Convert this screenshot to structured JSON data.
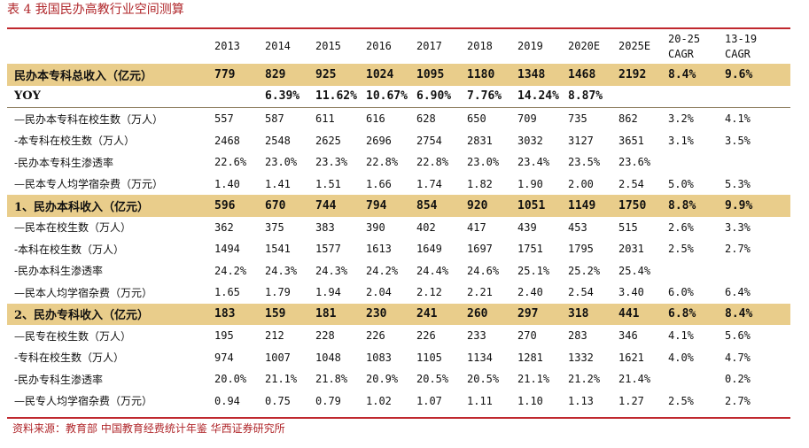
{
  "title": "表 4 我国民办高教行业空间测算",
  "header": {
    "blank": "",
    "years": [
      "2013",
      "2014",
      "2015",
      "2016",
      "2017",
      "2018",
      "2019",
      "2020E",
      "2025E"
    ],
    "cagr1": [
      "20-25",
      "CAGR"
    ],
    "cagr2": [
      "13-19",
      "CAGR"
    ]
  },
  "rows": [
    {
      "label": "民办本专科总收入（亿元）",
      "style": "hl",
      "values": [
        "779",
        "829",
        "925",
        "1024",
        "1095",
        "1180",
        "1348",
        "1468",
        "2192",
        "8.4%",
        "9.6%"
      ]
    },
    {
      "label": "YOY",
      "style": "bold sepline",
      "values": [
        "",
        "6.39%",
        "11.62%",
        "10.67%",
        "6.90%",
        "7.76%",
        "14.24%",
        "8.87%",
        "",
        "",
        ""
      ]
    },
    {
      "label": "—民办本专科在校生数（万人）",
      "style": "",
      "values": [
        "557",
        "587",
        "611",
        "616",
        "628",
        "650",
        "709",
        "735",
        "862",
        "3.2%",
        "4.1%"
      ]
    },
    {
      "label": "-本专科在校生数（万人）",
      "style": "",
      "values": [
        "2468",
        "2548",
        "2625",
        "2696",
        "2754",
        "2831",
        "3032",
        "3127",
        "3651",
        "3.1%",
        "3.5%"
      ]
    },
    {
      "label": "-民办本专科生渗透率",
      "style": "",
      "values": [
        "22.6%",
        "23.0%",
        "23.3%",
        "22.8%",
        "22.8%",
        "23.0%",
        "23.4%",
        "23.5%",
        "23.6%",
        "",
        ""
      ]
    },
    {
      "label": "—民本专人均学宿杂费（万元）",
      "style": "",
      "values": [
        "1.40",
        "1.41",
        "1.51",
        "1.66",
        "1.74",
        "1.82",
        "1.90",
        "2.00",
        "2.54",
        "5.0%",
        "5.3%"
      ]
    },
    {
      "label": "1、民办本科收入（亿元）",
      "style": "hl",
      "values": [
        "596",
        "670",
        "744",
        "794",
        "854",
        "920",
        "1051",
        "1149",
        "1750",
        "8.8%",
        "9.9%"
      ]
    },
    {
      "label": "—民本在校生数（万人）",
      "style": "",
      "values": [
        "362",
        "375",
        "383",
        "390",
        "402",
        "417",
        "439",
        "453",
        "515",
        "2.6%",
        "3.3%"
      ]
    },
    {
      "label": "-本科在校生数（万人）",
      "style": "",
      "values": [
        "1494",
        "1541",
        "1577",
        "1613",
        "1649",
        "1697",
        "1751",
        "1795",
        "2031",
        "2.5%",
        "2.7%"
      ]
    },
    {
      "label": "-民办本科生渗透率",
      "style": "",
      "values": [
        "24.2%",
        "24.3%",
        "24.3%",
        "24.2%",
        "24.4%",
        "24.6%",
        "25.1%",
        "25.2%",
        "25.4%",
        "",
        ""
      ]
    },
    {
      "label": "—民本人均学宿杂费（万元）",
      "style": "",
      "values": [
        "1.65",
        "1.79",
        "1.94",
        "2.04",
        "2.12",
        "2.21",
        "2.40",
        "2.54",
        "3.40",
        "6.0%",
        "6.4%"
      ]
    },
    {
      "label": "2、民办专科收入（亿元）",
      "style": "hl",
      "values": [
        "183",
        "159",
        "181",
        "230",
        "241",
        "260",
        "297",
        "318",
        "441",
        "6.8%",
        "8.4%"
      ]
    },
    {
      "label": "—民专在校生数（万人）",
      "style": "",
      "values": [
        "195",
        "212",
        "228",
        "226",
        "226",
        "233",
        "270",
        "283",
        "346",
        "4.1%",
        "5.6%"
      ]
    },
    {
      "label": "-专科在校生数（万人）",
      "style": "",
      "values": [
        "974",
        "1007",
        "1048",
        "1083",
        "1105",
        "1134",
        "1281",
        "1332",
        "1621",
        "4.0%",
        "4.7%"
      ]
    },
    {
      "label": "-民办专科生渗透率",
      "style": "",
      "values": [
        "20.0%",
        "21.1%",
        "21.8%",
        "20.9%",
        "20.5%",
        "20.5%",
        "21.1%",
        "21.2%",
        "21.4%",
        "",
        "0.2%"
      ]
    },
    {
      "label": "—民专人均学宿杂费（万元）",
      "style": "",
      "values": [
        "0.94",
        "0.75",
        "0.79",
        "1.02",
        "1.07",
        "1.11",
        "1.10",
        "1.13",
        "1.27",
        "2.5%",
        "2.7%"
      ]
    }
  ],
  "source": "资料来源：教育部 中国教育经费统计年鉴 华西证券研究所"
}
